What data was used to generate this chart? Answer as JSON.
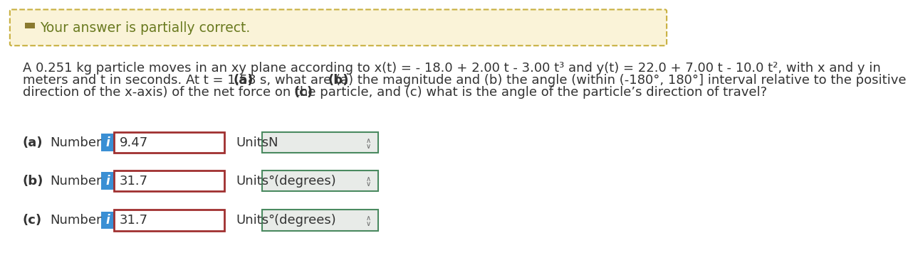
{
  "banner_text": "Your answer is partially correct.",
  "banner_bg": "#faf3d8",
  "banner_border": "#c8b040",
  "banner_icon_color": "#8a7a30",
  "problem_line1": "A 0.251 kg particle moves in an xy plane according to x(t) = - 18.0 + 2.00 t - 3.00 t³ and y(t) = 22.0 + 7.00 t - 10.0 t², with x and y in",
  "problem_line2": "meters and t in seconds. At t = 1.58 s, what are (a) the magnitude and (b) the angle (within (-180°, 180°] interval relative to the positive",
  "problem_line3": "direction of the x-axis) of the net force on the particle, and (c) what is the angle of the particle’s direction of travel?",
  "parts": [
    {
      "label": "(a)",
      "value": "9.47",
      "unit": "N"
    },
    {
      "label": "(b)",
      "value": "31.7",
      "unit": "°(degrees)"
    },
    {
      "label": "(c)",
      "value": "31.7",
      "unit": "°(degrees)"
    }
  ],
  "input_box_border": "#a03030",
  "unit_box_border": "#4a8a60",
  "unit_box_bg": "#e8ebe8",
  "i_button_bg": "#3a8fd4",
  "i_button_text": "#ffffff",
  "text_color": "#333333",
  "banner_text_color": "#6a7a20",
  "bg_color": "#ffffff",
  "font_size": 13.5
}
